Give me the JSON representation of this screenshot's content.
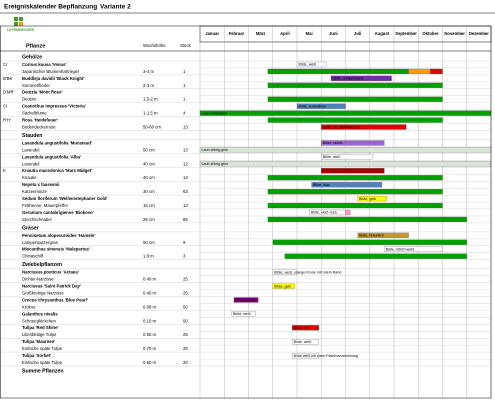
{
  "header": {
    "title": "Ereigniskalender Bepflanzung",
    "variant": "Variante 2",
    "logo": "LEYENDECKER"
  },
  "columns": {
    "plant": "Pflanze",
    "height": "Wuchshöhe",
    "count": "Stück"
  },
  "months": [
    "Januar",
    "Februar",
    "März",
    "April",
    "Mai",
    "Juni",
    "Juli",
    "August",
    "September",
    "Oktober",
    "November",
    "Dezember"
  ],
  "groups": [
    {
      "title": "Gehölze",
      "plants": [
        {
          "code": "Cr",
          "name": "Cornus kousa 'Venus'",
          "common": "Japanischer Blumenhartriegel",
          "height": "3-4 m",
          "count": "1",
          "name_bars": [
            {
              "label": "Blüte, weiß",
              "color": "#ffffff",
              "start": 5,
              "end": 6.2
            }
          ],
          "common_bars": [
            {
              "color": "#00a000",
              "start": 3.8,
              "end": 9.6
            },
            {
              "color": "#ff9900",
              "start": 9.6,
              "end": 10.5
            },
            {
              "color": "#e00000",
              "start": 10.5,
              "end": 11
            }
          ]
        },
        {
          "code": "B'BK'",
          "name": "Buddleja davidii 'Black Knight'",
          "common": "Sommerflieder",
          "height": "2-3 m",
          "count": "1",
          "name_bars": [
            {
              "label": "Blüte, dunkelviolett",
              "color": "#7030a0",
              "start": 6.4,
              "end": 8.9
            }
          ],
          "common_bars": [
            {
              "color": "#00a000",
              "start": 3.8,
              "end": 11
            }
          ]
        },
        {
          "code": "D'MR'",
          "name": "Deutzia 'Mont Rose'",
          "common": "Deutzie",
          "height": "1.5-2 m",
          "count": "1",
          "name_bars": [],
          "common_bars": [
            {
              "color": "#00a000",
              "start": 3.8,
              "end": 11
            }
          ]
        },
        {
          "code": "Ci",
          "name": "Ceanothus impressus 'Victoria'",
          "common": "Säckelblume",
          "height": "1-1.5 m",
          "count": "4",
          "name_bars": [
            {
              "label": "Blüte, dunkelblau",
              "color": "#4f81bd",
              "start": 5,
              "end": 7
            }
          ],
          "common_bars": [
            {
              "label": "Laub wintergrün",
              "color": "#00a000",
              "start": 1,
              "end": 13
            }
          ]
        },
        {
          "code": "R'H'",
          "name": "Rosa 'Heidefeuer'",
          "common": "Bodendeckerrose",
          "height": "50-60 cm",
          "count": "13",
          "name_bars": [
            {
              "color": "#00a000",
              "start": 3.8,
              "end": 11
            }
          ],
          "common_bars": [
            {
              "label": "Blüte, rot, öfterblühend",
              "color": "#e00000",
              "start": 6,
              "end": 9.5
            }
          ]
        }
      ]
    },
    {
      "title": "Stauden",
      "plants": [
        {
          "code": "",
          "name": "Lavandula angustifolia 'Munstead'",
          "common": "Lavendel",
          "height": "50 cm",
          "count": "13",
          "name_bars": [
            {
              "label": "Blüte, violett",
              "color": "#9966cc",
              "start": 6,
              "end": 8.6
            }
          ],
          "common_bars": [
            {
              "label": "Laub silbrig-grün",
              "color": "#d8e4d8",
              "start": 1,
              "end": 13
            }
          ]
        },
        {
          "code": "",
          "name": "Lavandula angustifolia 'Alba'",
          "common": "Lavendel",
          "height": "40 cm",
          "count": "12",
          "name_bars": [
            {
              "label": "Blüte, weiß",
              "color": "#ffffff",
              "start": 6,
              "end": 8.1
            }
          ],
          "common_bars": [
            {
              "label": "Laub silbrig-grün",
              "color": "#d8e4d8",
              "start": 1,
              "end": 13
            }
          ]
        },
        {
          "code": "K",
          "name": "Knautia macedonica 'Mars Midget'",
          "common": "Knautie",
          "height": "40 cm",
          "count": "13",
          "name_bars": [
            {
              "color": "#a00000",
              "start": 6,
              "end": 8.6
            }
          ],
          "common_bars": [
            {
              "color": "#00a000",
              "start": 3.8,
              "end": 11
            }
          ]
        },
        {
          "code": "",
          "name": "Nepeta x faassenii",
          "common": "Katzenminze",
          "height": "30 cm",
          "count": "63",
          "name_bars": [
            {
              "label": "Blüte, blau",
              "color": "#4f81bd",
              "start": 5.6,
              "end": 8.5
            }
          ],
          "common_bars": [
            {
              "color": "#00a000",
              "start": 3.8,
              "end": 11
            }
          ]
        },
        {
          "code": "",
          "name": "Sedum floriferum 'Weihenstephaner Gold'",
          "common": "Fetthenne, Mauerpfeffer",
          "height": "15 cm",
          "count": "13",
          "name_bars": [
            {
              "label": "Blüte, gelb",
              "color": "#ffff00",
              "start": 7.5,
              "end": 8.7
            }
          ],
          "common_bars": [
            {
              "color": "#00a000",
              "start": 3.8,
              "end": 11
            }
          ]
        },
        {
          "code": "",
          "name": "Geranium cantabrigiense 'Biokovo'",
          "common": "Storchschnabel",
          "height": "25 cm",
          "count": "86",
          "name_bars": [
            {
              "label": "Blüte, weiß-rosa",
              "color": "#ffffff",
              "start": 5.5,
              "end": 7
            },
            {
              "color": "#ff99cc",
              "start": 7,
              "end": 7.2
            }
          ],
          "common_bars": [
            {
              "color": "#00a000",
              "start": 3.8,
              "end": 12
            }
          ]
        }
      ]
    },
    {
      "title": "Gräser",
      "plants": [
        {
          "code": "",
          "name": "Pennisetum alopecuroides 'Hameln'",
          "common": "Lampenputzergras",
          "height": "50 cm",
          "count": "9",
          "name_bars": [
            {
              "label": "Blüte, bräunlich",
              "color": "#c09a30",
              "start": 7.5,
              "end": 9.6
            }
          ],
          "common_bars": [
            {
              "color": "#00a000",
              "start": 4,
              "end": 12
            }
          ]
        },
        {
          "code": "",
          "name": "Miscanthus sinensis 'Malepartus'",
          "common": "Chinaschilf",
          "height": "1.8 m",
          "count": "3",
          "name_bars": [
            {
              "label": "Blüte, rötlich-weiß",
              "color": "#ffffff",
              "start": 8.6,
              "end": 11
            }
          ],
          "common_bars": [
            {
              "color": "#00a000",
              "start": 4.5,
              "end": 12
            }
          ]
        }
      ]
    },
    {
      "title": "Zwiebelpflanzen",
      "plants": [
        {
          "code": "",
          "name": "Narcissus poeticus 'Actaea'",
          "common": "Dichter-Narzisse",
          "height": "0.40 m",
          "count": "25",
          "name_bars": [
            {
              "label": "Blüte, weiß, orange Krone mit rotem Rand",
              "color": "#ffffff",
              "start": 4,
              "end": 5
            }
          ],
          "common_bars": []
        },
        {
          "code": "",
          "name": "Narcissus 'Saint Patrick Day'",
          "common": "Großkronige Narzisse",
          "height": "0.40 m",
          "count": "25",
          "name_bars": [
            {
              "label": "Blüte, gelb",
              "color": "#ffff00",
              "start": 4,
              "end": 4.9
            }
          ],
          "common_bars": []
        },
        {
          "code": "",
          "name": "Crocus chrysanthus 'Blue Pearl'",
          "common": "Krokus",
          "height": "0.08 m",
          "count": "50",
          "name_bars": [
            {
              "label": "Blüte, purpur",
              "color": "#800080",
              "start": 2.4,
              "end": 3.4
            }
          ],
          "common_bars": []
        },
        {
          "code": "",
          "name": "Galanthus nivalis",
          "common": "Schneeglöckchen",
          "height": "0.10 m",
          "count": "50",
          "name_bars": [
            {
              "label": "Blüte, weiß",
              "color": "#ffffff",
              "start": 2.3,
              "end": 3.3
            }
          ],
          "common_bars": []
        },
        {
          "code": "",
          "name": "Tulipa 'Red Shine'",
          "common": "Lilienblütige Tulpe",
          "height": "0.55 m",
          "count": "25",
          "name_bars": [
            {
              "label": "Blüte, rot",
              "color": "#e00000",
              "start": 4.8,
              "end": 5.9
            }
          ],
          "common_bars": []
        },
        {
          "code": "",
          "name": "Tulipa 'Maureen'",
          "common": "Einfache späte Tulpe",
          "height": "0.70 m",
          "count": "25",
          "name_bars": [
            {
              "label": "Blüte, weiß",
              "color": "#ffffff",
              "start": 4.8,
              "end": 5.9
            }
          ],
          "common_bars": []
        },
        {
          "code": "",
          "name": "Tulipa 'Sorbet'",
          "common": "Einfache späte Tulpe",
          "height": "0.60 m",
          "count": "20",
          "name_bars": [
            {
              "label": "Blüte weiß mit roten Flammenzeichnung",
              "color": "#ffffff",
              "start": 4.8,
              "end": 5.9
            }
          ],
          "common_bars": []
        }
      ]
    }
  ],
  "footer": "Summe Pflanzen"
}
